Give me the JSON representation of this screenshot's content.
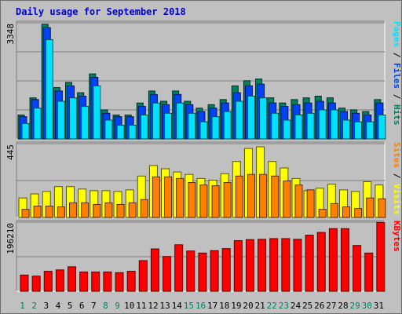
{
  "title": "Daily usage for September 2018",
  "colors": {
    "background": "#c0c0c0",
    "hits": "#00805c",
    "files": "#0042f5",
    "pages": "#00e1fd",
    "visits": "#ffff00",
    "sites": "#ff8000",
    "kbytes": "#ff0000",
    "weekend_label": "#00805c",
    "weekday_label": "#000000",
    "title": "#0000cc"
  },
  "chart_data": [
    {
      "type": "bar",
      "panel": "hits-files-pages",
      "categories": [
        "1",
        "2",
        "3",
        "4",
        "5",
        "6",
        "7",
        "8",
        "9",
        "10",
        "11",
        "12",
        "13",
        "14",
        "15",
        "16",
        "17",
        "18",
        "19",
        "20",
        "21",
        "22",
        "23",
        "24",
        "25",
        "26",
        "27",
        "28",
        "29",
        "30",
        "31"
      ],
      "y_tick_label": "3348",
      "ylim": [
        0,
        3348
      ],
      "series": [
        {
          "name": "Hits",
          "values": [
            700,
            1200,
            3348,
            1500,
            1650,
            1350,
            1900,
            850,
            700,
            700,
            1050,
            1400,
            1100,
            1400,
            1100,
            900,
            1000,
            1150,
            1550,
            1700,
            1750,
            1200,
            1050,
            1150,
            1200,
            1250,
            1200,
            900,
            850,
            800,
            1150
          ]
        },
        {
          "name": "Files",
          "values": [
            650,
            1150,
            3250,
            1400,
            1550,
            1250,
            1800,
            750,
            650,
            650,
            950,
            1300,
            1000,
            1300,
            1000,
            800,
            900,
            1050,
            1350,
            1550,
            1600,
            1050,
            950,
            1000,
            1050,
            1100,
            1050,
            800,
            750,
            700,
            1050
          ]
        },
        {
          "name": "Pages",
          "values": [
            450,
            900,
            2900,
            1100,
            1200,
            950,
            1550,
            550,
            400,
            400,
            700,
            1050,
            750,
            1050,
            750,
            500,
            650,
            800,
            1100,
            1250,
            1200,
            750,
            550,
            700,
            750,
            850,
            850,
            550,
            500,
            500,
            700
          ]
        }
      ],
      "ylabel_parts": [
        "Pages",
        "Files",
        "Hits"
      ]
    },
    {
      "type": "bar",
      "panel": "visits-sites",
      "categories": [
        "1",
        "2",
        "3",
        "4",
        "5",
        "6",
        "7",
        "8",
        "9",
        "10",
        "11",
        "12",
        "13",
        "14",
        "15",
        "16",
        "17",
        "18",
        "19",
        "20",
        "21",
        "22",
        "23",
        "24",
        "25",
        "26",
        "27",
        "28",
        "29",
        "30",
        "31"
      ],
      "y_tick_label": "445",
      "ylim": [
        0,
        445
      ],
      "series": [
        {
          "name": "Visits",
          "values": [
            120,
            145,
            160,
            190,
            190,
            175,
            165,
            165,
            160,
            170,
            255,
            320,
            300,
            280,
            265,
            240,
            230,
            270,
            345,
            425,
            435,
            345,
            305,
            240,
            165,
            180,
            205,
            170,
            160,
            220,
            200
          ]
        },
        {
          "name": "Sites",
          "values": [
            50,
            70,
            70,
            65,
            90,
            90,
            80,
            90,
            80,
            90,
            110,
            250,
            250,
            240,
            215,
            200,
            195,
            215,
            255,
            265,
            265,
            255,
            225,
            200,
            170,
            50,
            85,
            65,
            55,
            120,
            115
          ]
        }
      ],
      "ylabel_parts": [
        "Sites",
        "Visits"
      ]
    },
    {
      "type": "bar",
      "panel": "kbytes",
      "categories": [
        "1",
        "2",
        "3",
        "4",
        "5",
        "6",
        "7",
        "8",
        "9",
        "10",
        "11",
        "12",
        "13",
        "14",
        "15",
        "16",
        "17",
        "18",
        "19",
        "20",
        "21",
        "22",
        "23",
        "24",
        "25",
        "26",
        "27",
        "28",
        "29",
        "30",
        "31"
      ],
      "y_tick_label": "196210",
      "ylim": [
        0,
        196210
      ],
      "series": [
        {
          "name": "KBytes",
          "values": [
            47000,
            44000,
            58000,
            62000,
            71000,
            56000,
            56000,
            56000,
            54000,
            58000,
            89000,
            123000,
            101000,
            135000,
            117000,
            111000,
            118000,
            124000,
            147000,
            150000,
            151000,
            153000,
            153000,
            151000,
            163000,
            171000,
            182000,
            182000,
            133000,
            111000,
            200000
          ]
        }
      ],
      "ylabel_parts": [
        "KBytes"
      ]
    }
  ],
  "x_label_colors": [
    "#00805c",
    "#00805c",
    "#000000",
    "#000000",
    "#000000",
    "#000000",
    "#000000",
    "#00805c",
    "#00805c",
    "#000000",
    "#000000",
    "#000000",
    "#000000",
    "#000000",
    "#00805c",
    "#00805c",
    "#000000",
    "#000000",
    "#000000",
    "#000000",
    "#000000",
    "#00805c",
    "#00805c",
    "#000000",
    "#000000",
    "#000000",
    "#000000",
    "#000000",
    "#00805c",
    "#00805c",
    "#000000"
  ],
  "separator": " / "
}
